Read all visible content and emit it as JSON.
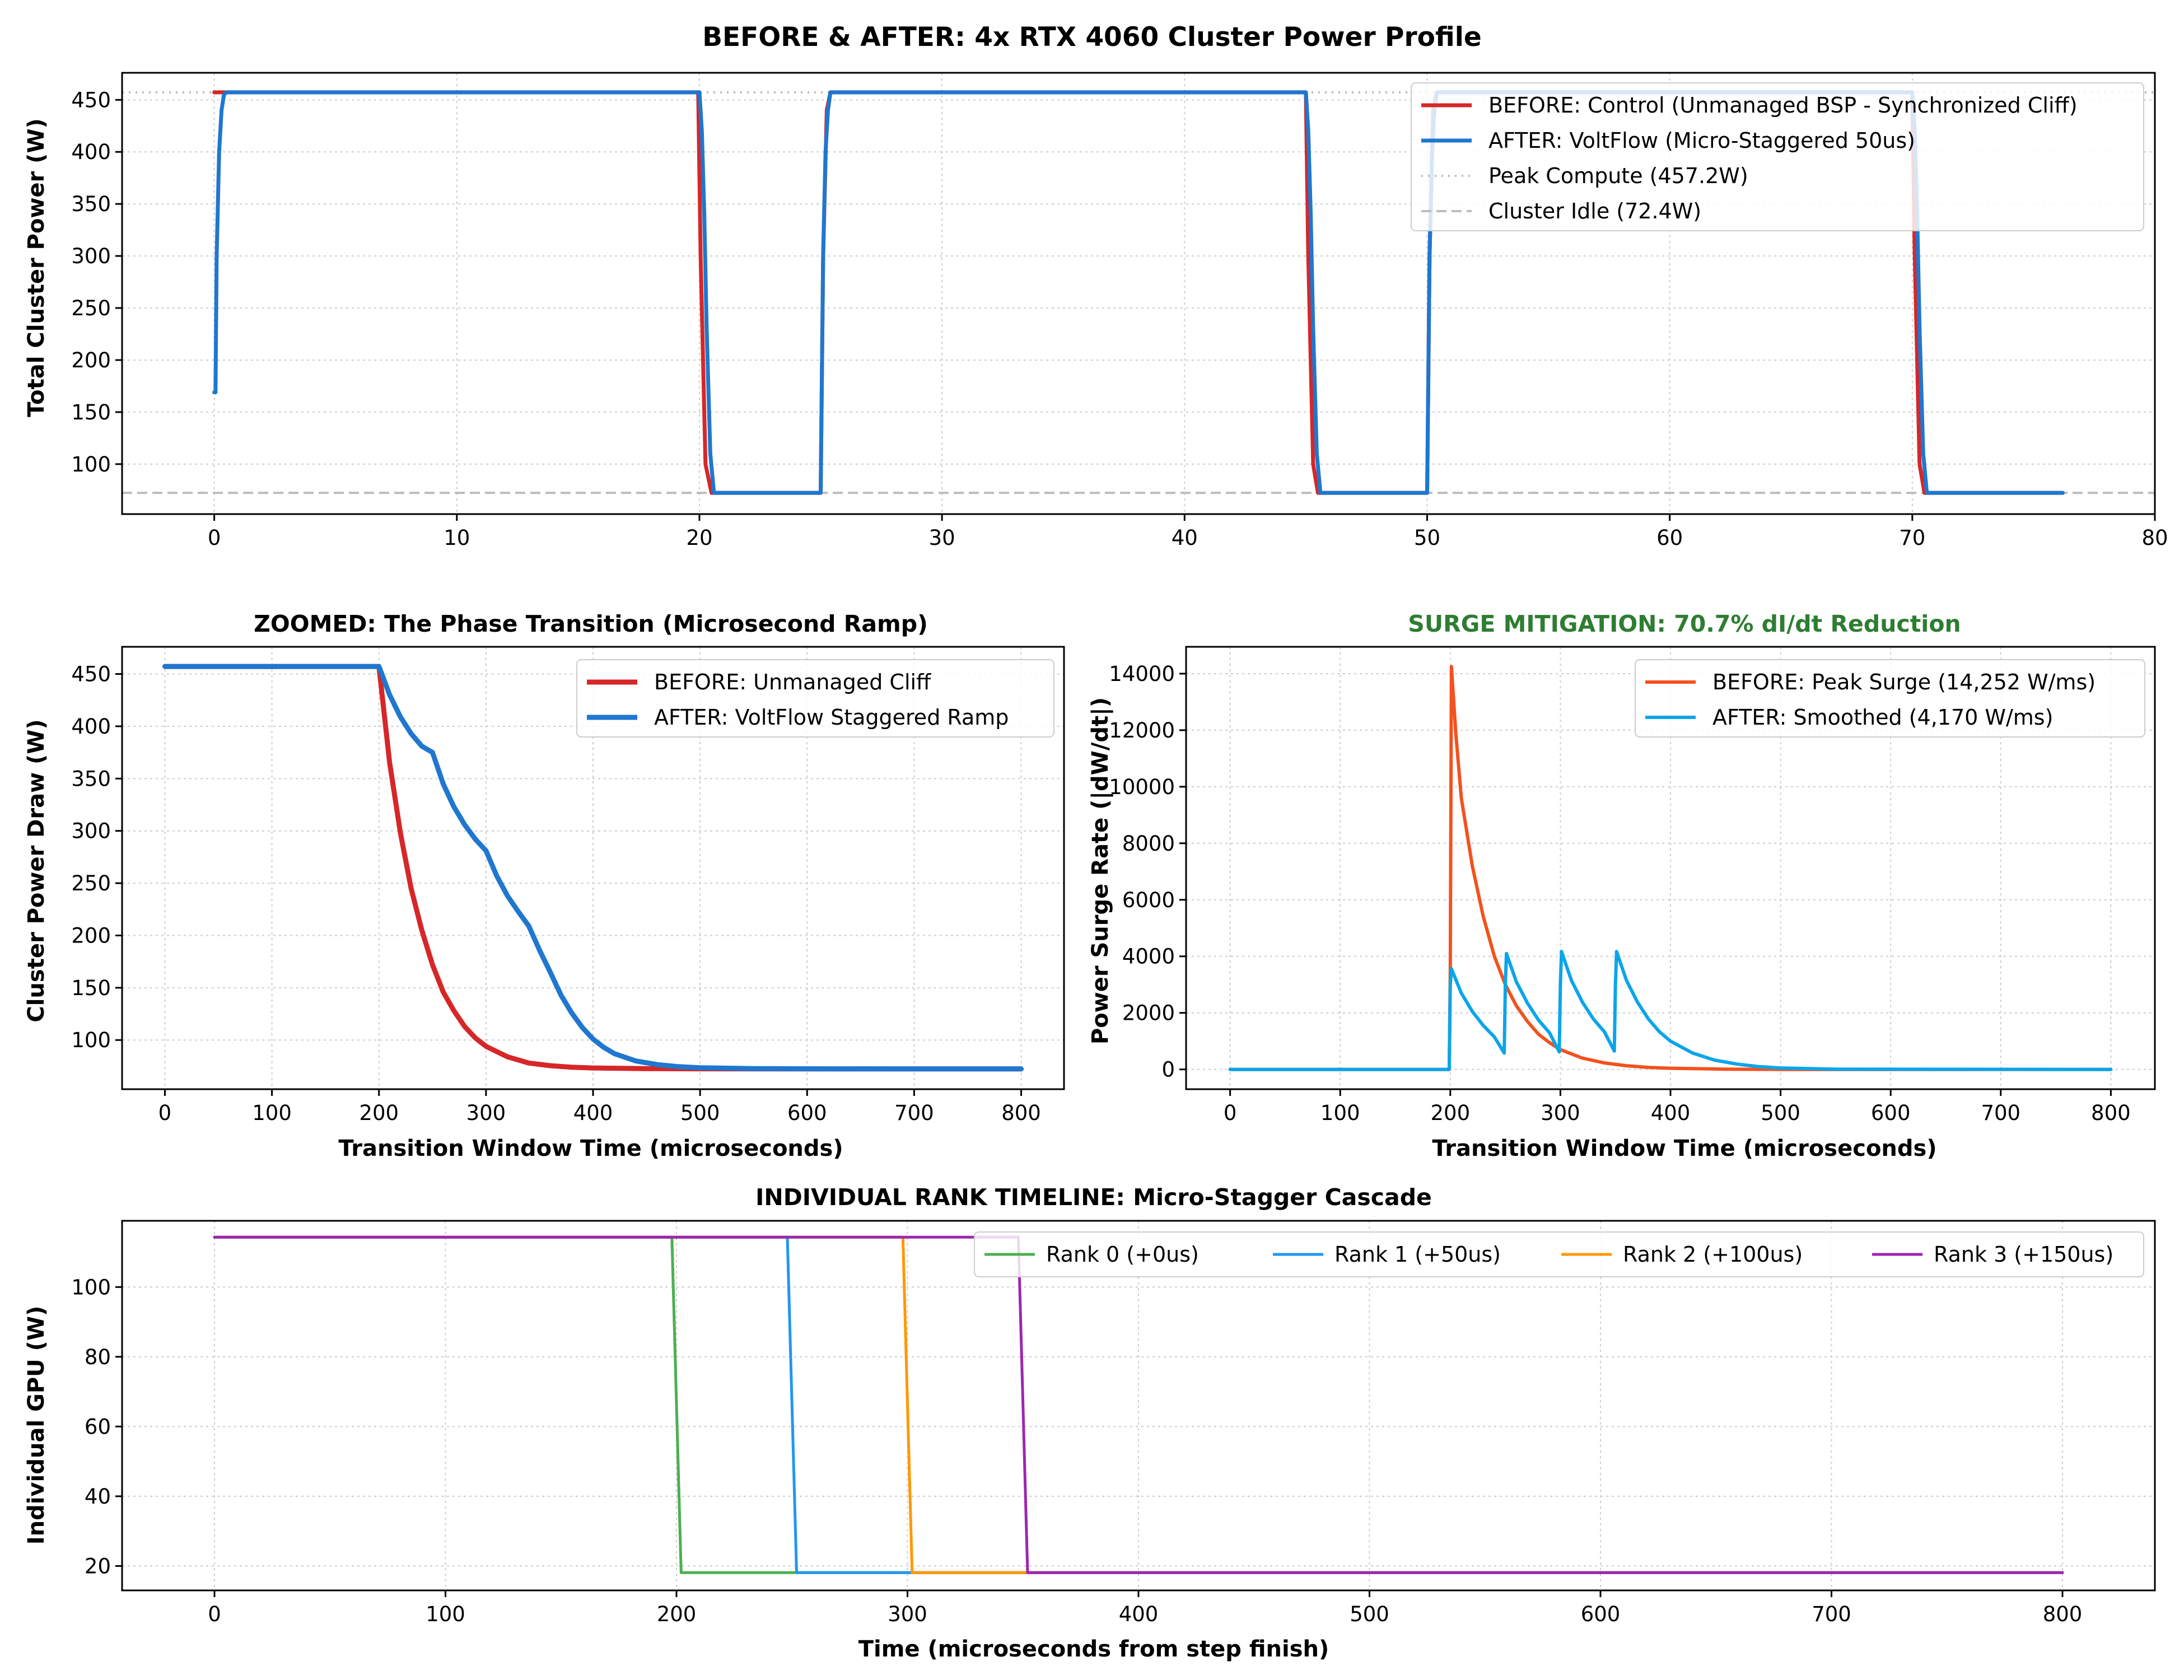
{
  "figure": {
    "title": "BEFORE & AFTER: 4x RTX 4060 Cluster Power Profile"
  },
  "colors": {
    "before_red": "#d62728",
    "after_blue": "#1f77d0",
    "surge_orange": "#f4511e",
    "surge_blue": "#0ba5e9",
    "rank0": "#4caf50",
    "rank1": "#2196f3",
    "rank2": "#ff9800",
    "rank3": "#9c27b0",
    "ref_gray": "#bdbdbd",
    "grid": "#cccccc",
    "green_title": "#2e7d32"
  },
  "chart_data": [
    {
      "id": "cluster",
      "type": "line",
      "title": "",
      "xlabel": "",
      "ylabel": "Total Cluster Power (W)",
      "xlim": [
        -3.8,
        80
      ],
      "ylim": [
        52,
        476
      ],
      "xticks": [
        0,
        10,
        20,
        30,
        40,
        50,
        60,
        70,
        80
      ],
      "yticks": [
        100,
        150,
        200,
        250,
        300,
        350,
        400,
        450
      ],
      "grid": true,
      "legend": {
        "position": "top-right",
        "entries": [
          "BEFORE: Control (Unmanaged BSP - Synchronized Cliff)",
          "AFTER: VoltFlow (Micro-Staggered 50us)",
          "Peak Compute (457.2W)",
          "Cluster Idle (72.4W)"
        ]
      },
      "series": [
        {
          "name": "BEFORE: Control (Unmanaged BSP - Synchronized Cliff)",
          "x": [
            0,
            0.05,
            19.95,
            20.05,
            20.25,
            20.5,
            25.0,
            25.1,
            25.25,
            25.4,
            45.0,
            45.1,
            45.3,
            45.5,
            50.0,
            50.1,
            50.25,
            50.4,
            70.0,
            70.1,
            70.3,
            70.5,
            76.2
          ],
          "y": [
            457.2,
            457.2,
            457.2,
            300,
            100,
            72.4,
            72.4,
            300,
            440,
            457.2,
            457.2,
            300,
            100,
            72.4,
            72.4,
            300,
            440,
            457.2,
            457.2,
            300,
            100,
            72.4,
            72.4
          ]
        },
        {
          "name": "AFTER: VoltFlow (Micro-Staggered 50us)",
          "x": [
            0.0,
            0.05,
            0.1,
            0.2,
            0.3,
            0.4,
            0.5,
            20.0,
            20.1,
            20.2,
            20.3,
            20.45,
            20.6,
            25.0,
            25.1,
            25.2,
            25.3,
            25.4,
            45.0,
            45.1,
            45.2,
            45.3,
            45.45,
            45.6,
            50.0,
            50.1,
            50.2,
            50.3,
            50.4,
            70.0,
            70.1,
            70.2,
            70.3,
            70.45,
            70.6,
            76.2
          ],
          "y": [
            169,
            169,
            300,
            400,
            440,
            455,
            457.2,
            457.2,
            420,
            340,
            230,
            110,
            72.4,
            72.4,
            300,
            400,
            440,
            457.2,
            457.2,
            420,
            340,
            230,
            110,
            72.4,
            72.4,
            300,
            400,
            440,
            457.2,
            457.2,
            420,
            340,
            230,
            110,
            72.4,
            72.4
          ]
        },
        {
          "name": "Peak Compute (457.2W)",
          "y_const": 457.2
        },
        {
          "name": "Cluster Idle (72.4W)",
          "y_const": 72.4
        }
      ]
    },
    {
      "id": "zoom",
      "type": "line",
      "title": "ZOOMED: The Phase Transition (Microsecond Ramp)",
      "xlabel": "Transition Window Time (microseconds)",
      "ylabel": "Cluster Power Draw (W)",
      "xlim": [
        -40,
        840
      ],
      "ylim": [
        53,
        476
      ],
      "xticks": [
        0,
        100,
        200,
        300,
        400,
        500,
        600,
        700,
        800
      ],
      "yticks": [
        100,
        150,
        200,
        250,
        300,
        350,
        400,
        450
      ],
      "grid": true,
      "legend": {
        "position": "top-right",
        "entries": [
          "BEFORE: Unmanaged Cliff",
          "AFTER: VoltFlow Staggered Ramp"
        ]
      },
      "series": [
        {
          "name": "BEFORE: Unmanaged Cliff",
          "x": [
            0,
            200,
            210,
            220,
            230,
            240,
            250,
            260,
            270,
            280,
            290,
            300,
            320,
            340,
            360,
            380,
            400,
            450,
            500,
            600,
            700,
            800
          ],
          "y": [
            457.2,
            457.2,
            365,
            298,
            245,
            205,
            172,
            146,
            128,
            113,
            102,
            94,
            84,
            78,
            75.5,
            74,
            73.3,
            72.7,
            72.5,
            72.4,
            72.4,
            72.4
          ]
        },
        {
          "name": "AFTER: VoltFlow Staggered Ramp",
          "x": [
            0,
            200,
            210,
            220,
            230,
            240,
            250,
            260,
            270,
            280,
            290,
            300,
            310,
            320,
            330,
            340,
            350,
            360,
            370,
            380,
            390,
            400,
            410,
            420,
            440,
            460,
            480,
            500,
            550,
            600,
            700,
            800
          ],
          "y": [
            457.2,
            457.2,
            430,
            409,
            393,
            381,
            375,
            345,
            323,
            306,
            292,
            281,
            257,
            238,
            223,
            209,
            186,
            165,
            143,
            126,
            112,
            101,
            93,
            87,
            80,
            76.5,
            74.5,
            73.5,
            72.7,
            72.5,
            72.4,
            72.4
          ]
        }
      ]
    },
    {
      "id": "surge",
      "type": "line",
      "title": "SURGE MITIGATION: 70.7% dI/dt Reduction",
      "xlabel": "Transition Window Time (microseconds)",
      "ylabel": "Power Surge Rate (|dW/dt|)",
      "xlim": [
        -40,
        840
      ],
      "ylim": [
        -700,
        14950
      ],
      "xticks": [
        0,
        100,
        200,
        300,
        400,
        500,
        600,
        700,
        800
      ],
      "yticks": [
        0,
        2000,
        4000,
        6000,
        8000,
        10000,
        12000,
        14000
      ],
      "grid": true,
      "legend": {
        "position": "top-right",
        "entries": [
          "BEFORE: Peak Surge (14,252 W/ms)",
          "AFTER: Smoothed (4,170 W/ms)"
        ]
      },
      "series": [
        {
          "name": "BEFORE: Peak Surge (14,252 W/ms)",
          "x": [
            0,
            199,
            200,
            201,
            205,
            210,
            220,
            230,
            240,
            250,
            260,
            270,
            280,
            290,
            300,
            320,
            340,
            360,
            380,
            400,
            450,
            500,
            800
          ],
          "y": [
            0,
            0,
            3500,
            14252,
            11900,
            9600,
            7200,
            5400,
            4000,
            3000,
            2250,
            1700,
            1250,
            950,
            700,
            400,
            230,
            130,
            70,
            40,
            10,
            0,
            0
          ]
        },
        {
          "name": "AFTER: Smoothed (4,170 W/ms)",
          "x": [
            0,
            199,
            200,
            201,
            210,
            220,
            230,
            240,
            249,
            250,
            251,
            260,
            270,
            280,
            290,
            299,
            300,
            301,
            310,
            320,
            330,
            340,
            349,
            350,
            351,
            360,
            370,
            380,
            390,
            400,
            420,
            440,
            460,
            480,
            500,
            550,
            800
          ],
          "y": [
            0,
            0,
            3000,
            3560,
            2700,
            2050,
            1550,
            1150,
            580,
            3000,
            4100,
            3100,
            2350,
            1750,
            1300,
            620,
            3000,
            4170,
            3150,
            2380,
            1780,
            1330,
            650,
            3000,
            4170,
            3150,
            2380,
            1780,
            1330,
            1000,
            580,
            330,
            190,
            100,
            50,
            10,
            0
          ]
        }
      ]
    },
    {
      "id": "ranks",
      "type": "line",
      "title": "INDIVIDUAL RANK TIMELINE: Micro-Stagger Cascade",
      "xlabel": "Time (microseconds from step finish)",
      "ylabel": "Individual GPU (W)",
      "xlim": [
        -40,
        840
      ],
      "ylim": [
        13,
        119
      ],
      "xticks": [
        0,
        100,
        200,
        300,
        400,
        500,
        600,
        700,
        800
      ],
      "yticks": [
        20,
        40,
        60,
        80,
        100
      ],
      "grid": true,
      "legend": {
        "position": "top-right",
        "entries": [
          "Rank 0 (+0us)",
          "Rank 1 (+50us)",
          "Rank 2 (+100us)",
          "Rank 3 (+150us)"
        ]
      },
      "series": [
        {
          "name": "Rank 0 (+0us)",
          "x": [
            0,
            198,
            202,
            800
          ],
          "y": [
            114.3,
            114.3,
            18.1,
            18.1
          ]
        },
        {
          "name": "Rank 1 (+50us)",
          "x": [
            0,
            248,
            252,
            800
          ],
          "y": [
            114.3,
            114.3,
            18.1,
            18.1
          ]
        },
        {
          "name": "Rank 2 (+100us)",
          "x": [
            0,
            298,
            302,
            800
          ],
          "y": [
            114.3,
            114.3,
            18.1,
            18.1
          ]
        },
        {
          "name": "Rank 3 (+150us)",
          "x": [
            0,
            348,
            352,
            800
          ],
          "y": [
            114.3,
            114.3,
            18.1,
            18.1
          ]
        }
      ]
    }
  ]
}
